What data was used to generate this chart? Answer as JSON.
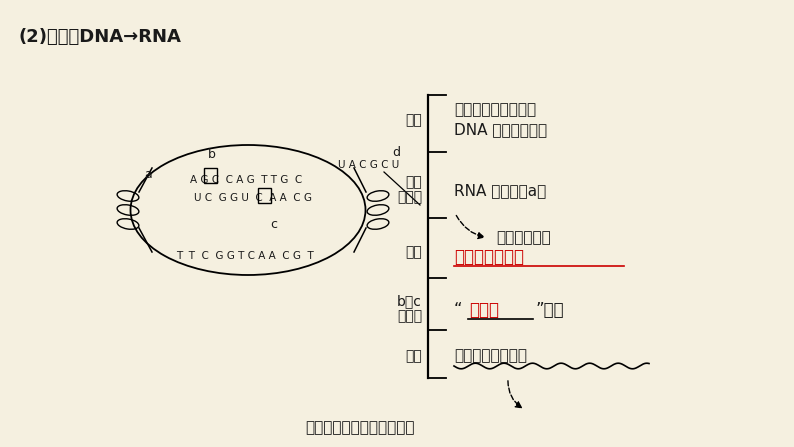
{
  "bg_color": "#f5f0e0",
  "title": "(2)转录：DNA→RNA",
  "font_color": "#1a1a1a",
  "red_color": "#cc0000",
  "label_a": "a",
  "label_b": "b",
  "label_c": "c",
  "label_d": "d",
  "dna_seq_top": "A G C  C A G  T T G  C",
  "dna_seq_bot": "U C  G G U  C  A A  C G",
  "rna_seq": "U A C G C U",
  "dna_seq_lower": "T  T  C  G G T C A A  C G  T",
  "label_changsu": "场所",
  "label_yizhong": "一种",
  "label_zhongyaoase": "重要醂",
  "label_yuanliao": "原料",
  "label_bvc": "b与c",
  "label_dchayi": "的差异",
  "label_fanwei": "范围",
  "text_changsu": "主要在细胞核（其他",
  "text_changsu2": "DNA 存在处均可）",
  "text_enzyme": "RNA 聤合醂（a）",
  "text_nohelicase": "不需要解旋醂",
  "text_material": "四种核糖核苷酸",
  "text_wutang": "五碳糖",
  "text_butong": "”不同",
  "text_fanwei": "几乎所有的活细胞",
  "text_bottom": "哺乳动物成熟的红细胞除外"
}
